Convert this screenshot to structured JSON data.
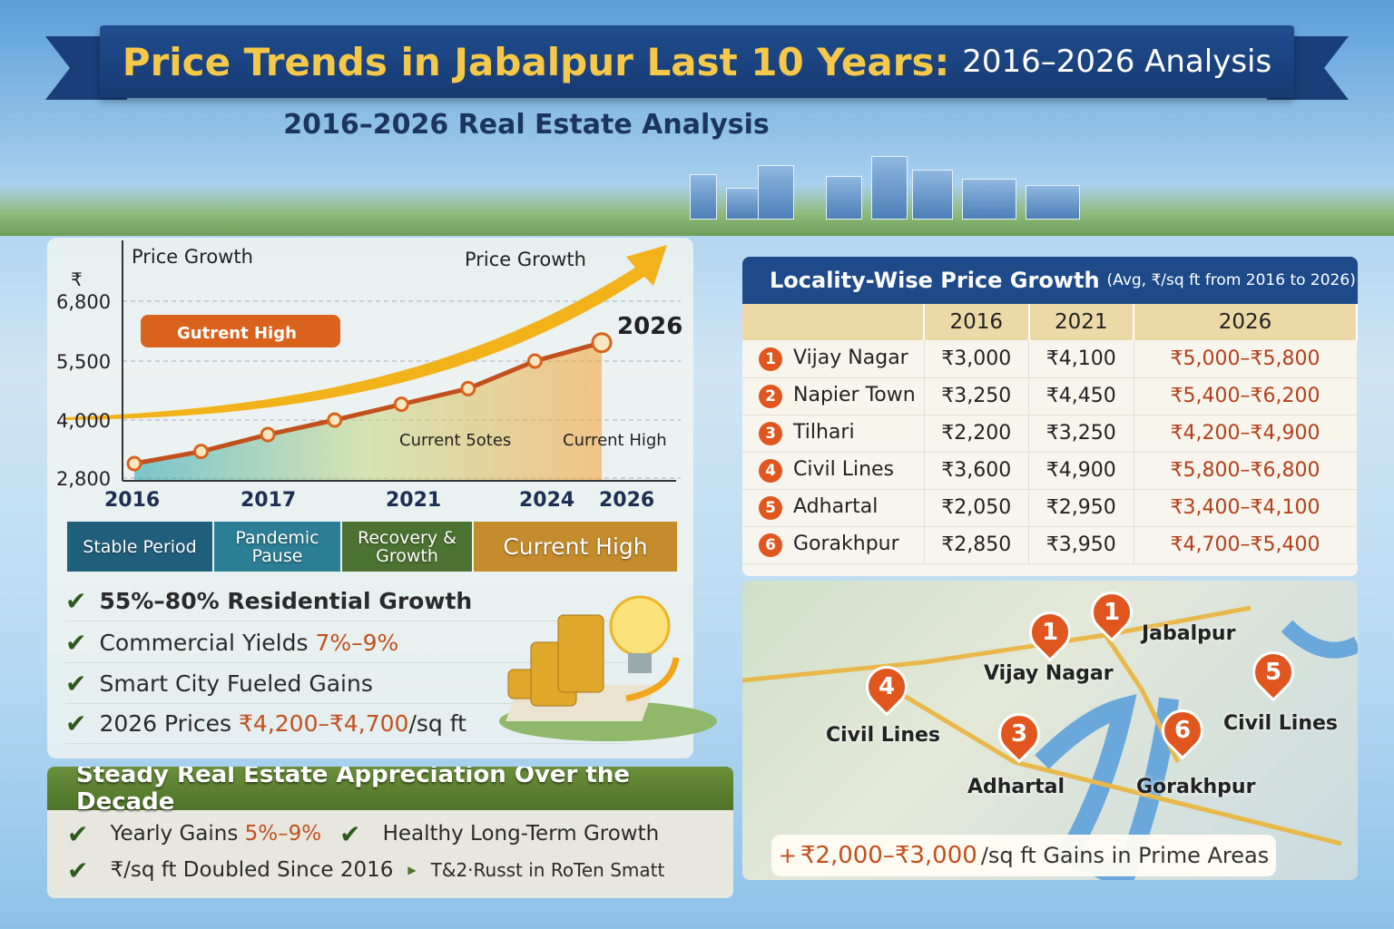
{
  "header": {
    "title_main": "Price Trends in Jabalpur Last 10 Years:",
    "title_rest": "2016–2026 Analysis",
    "subtitle": "2016–2026 Real Estate Analysis"
  },
  "chart_data": {
    "type": "line",
    "title": "Price Growth",
    "arrow_label": "Price Growth",
    "ylabel": "₹",
    "y_ticks": [
      "6,800",
      "5,500",
      "4,000",
      "2,800"
    ],
    "x_ticks": [
      "2016",
      "2017",
      "2021",
      "2024",
      "2026"
    ],
    "values": [
      3100,
      3350,
      3700,
      4000,
      4400,
      4800,
      5500,
      5900
    ],
    "end_label": "2026",
    "callout": "Gutrent High",
    "annotations": [
      "Current 5otes",
      "Current High"
    ],
    "ylim": [
      2800,
      6800
    ]
  },
  "phases": [
    "Stable Period",
    "Pandemic Pause",
    "Recovery & Growth",
    "Current High"
  ],
  "bullets": [
    {
      "text": "55%–80% Residential Growth",
      "hl": ""
    },
    {
      "text": "Commercial Yields ",
      "hl": "7%–9%"
    },
    {
      "text": "Smart City Fueled Gains",
      "hl": ""
    },
    {
      "text": "2026 Prices ",
      "hl": "₹4,200–₹4,700",
      "tail": "/sq ft"
    }
  ],
  "steady": {
    "title": "Steady Real Estate Appreciation Over the Decade",
    "items": [
      {
        "text": "Yearly Gains ",
        "hl": "5%–9%"
      },
      {
        "text": "Healthy Long-Term Growth"
      },
      {
        "text": "₹/sq ft Doubled Since 2016"
      },
      {
        "text": "T&2·Russt in RoTen Smatt"
      }
    ]
  },
  "table": {
    "title": "Locality-Wise Price Growth",
    "note": "(Avg, ₹/sq ft from 2016 to 2026)",
    "columns": [
      "2016",
      "2021",
      "2026"
    ],
    "rows": [
      {
        "n": "1",
        "name": "Vijay Nagar",
        "v2016": "₹3,000",
        "v2021": "₹4,100",
        "v2026": "₹5,000–₹5,800"
      },
      {
        "n": "2",
        "name": "Napier Town",
        "v2016": "₹3,250",
        "v2021": "₹4,450",
        "v2026": "₹5,400–₹6,200"
      },
      {
        "n": "3",
        "name": "Tilhari",
        "v2016": "₹2,200",
        "v2021": "₹3,250",
        "v2026": "₹4,200–₹4,900"
      },
      {
        "n": "4",
        "name": "Civil Lines",
        "v2016": "₹3,600",
        "v2021": "₹4,900",
        "v2026": "₹5,800–₹6,800"
      },
      {
        "n": "5",
        "name": "Adhartal",
        "v2016": "₹2,050",
        "v2021": "₹2,950",
        "v2026": "₹3,400–₹4,100"
      },
      {
        "n": "6",
        "name": "Gorakhpur",
        "v2016": "₹2,850",
        "v2021": "₹3,950",
        "v2026": "₹4,700–₹5,400"
      }
    ]
  },
  "map": {
    "labels": [
      "Jabalpur",
      "Vijay Nagar",
      "Civil Lines",
      "Adhartal",
      "Gorakhpur",
      "Civil Lines"
    ],
    "pins": [
      "1",
      "1",
      "4",
      "3",
      "6",
      "5"
    ],
    "gains_prefix": "+",
    "gains_hl": "₹2,000–₹3,000",
    "gains_text": "/sq ft Gains in Prime Areas"
  },
  "colors": {
    "navy": "#1e4a8a",
    "gold": "#f5c84a",
    "orange": "#e0561e",
    "green": "#4d7428"
  }
}
